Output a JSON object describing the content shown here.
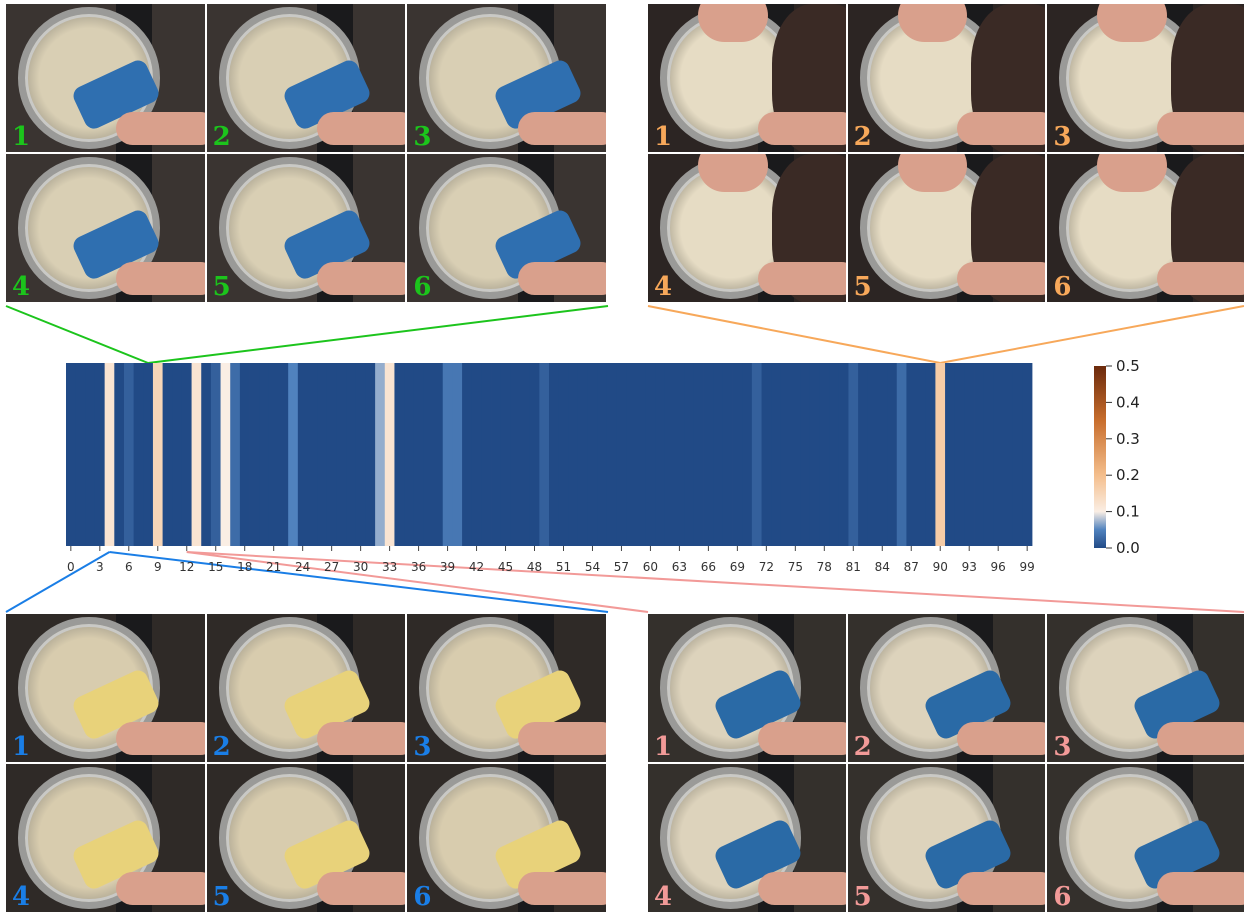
{
  "chart_data": {
    "type": "heatmap",
    "x_tick_labels": [
      "0",
      "3",
      "6",
      "9",
      "12",
      "15",
      "18",
      "21",
      "24",
      "27",
      "30",
      "33",
      "36",
      "39",
      "42",
      "45",
      "48",
      "51",
      "54",
      "57",
      "60",
      "63",
      "66",
      "69",
      "72",
      "75",
      "78",
      "81",
      "84",
      "87",
      "90",
      "93",
      "96",
      "99"
    ],
    "n_columns": 100,
    "values": [
      0.0,
      0.0,
      0.0,
      0.0,
      0.12,
      0.0,
      0.02,
      0.0,
      0.0,
      0.15,
      0.0,
      0.0,
      0.0,
      0.12,
      0.0,
      0.02,
      0.1,
      0.03,
      0.0,
      0.0,
      0.0,
      0.0,
      0.0,
      0.05,
      0.0,
      0.0,
      0.0,
      0.0,
      0.0,
      0.0,
      0.0,
      0.0,
      0.07,
      0.12,
      0.0,
      0.0,
      0.0,
      0.0,
      0.0,
      0.04,
      0.04,
      0.0,
      0.0,
      0.0,
      0.0,
      0.0,
      0.0,
      0.0,
      0.0,
      0.02,
      0.0,
      0.0,
      0.0,
      0.0,
      0.0,
      0.0,
      0.0,
      0.0,
      0.0,
      0.0,
      0.0,
      0.0,
      0.0,
      0.0,
      0.0,
      0.0,
      0.0,
      0.0,
      0.0,
      0.0,
      0.0,
      0.02,
      0.0,
      0.0,
      0.0,
      0.0,
      0.0,
      0.0,
      0.0,
      0.0,
      0.0,
      0.02,
      0.0,
      0.0,
      0.0,
      0.0,
      0.03,
      0.0,
      0.0,
      0.0,
      0.17,
      0.0,
      0.0,
      0.0,
      0.0,
      0.0,
      0.0,
      0.0,
      0.0,
      0.0
    ],
    "colorbar": {
      "range": [
        0.0,
        0.5
      ],
      "tick_labels": [
        "0.5",
        "0.4",
        "0.3",
        "0.2",
        "0.1",
        "0.0"
      ],
      "tick_values": [
        0.5,
        0.4,
        0.3,
        0.2,
        0.1,
        0.0
      ]
    },
    "highlights": [
      {
        "column": 8,
        "group": "green"
      },
      {
        "column": 90,
        "group": "orange"
      },
      {
        "column": 4,
        "group": "blue"
      },
      {
        "column": 12,
        "group": "pink"
      }
    ]
  },
  "panels": {
    "green": {
      "color": "#1cc41c",
      "frame_labels": [
        "1",
        "2",
        "3",
        "4",
        "5",
        "6"
      ],
      "scene": "pot-carton"
    },
    "orange": {
      "color": "#f7a85a",
      "frame_labels": [
        "1",
        "2",
        "3",
        "4",
        "5",
        "6"
      ],
      "scene": "pot-stir"
    },
    "blue": {
      "color": "#1a7ee6",
      "frame_labels": [
        "1",
        "2",
        "3",
        "4",
        "5",
        "6"
      ],
      "scene": "pot-butter"
    },
    "pink": {
      "color": "#f29a98",
      "frame_labels": [
        "1",
        "2",
        "3",
        "4",
        "5",
        "6"
      ],
      "scene": "pot-pour"
    }
  },
  "colors": {
    "heat_low": "#214a86",
    "heat_mid": "#faeee4",
    "heat_high": "#6b2a0c"
  }
}
